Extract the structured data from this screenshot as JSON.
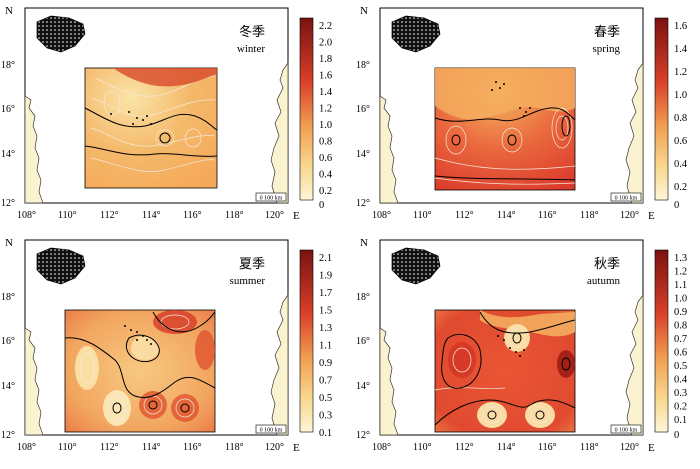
{
  "axis_labels": {
    "north": "N",
    "east": "E"
  },
  "panels": [
    {
      "season_cn": "冬季",
      "season_en": "winter",
      "scale_bar": "0 100 km",
      "colorbar": [
        "2.2",
        "2.0",
        "1.8",
        "1.6",
        "1.4",
        "1.2",
        "1.0",
        "0.8",
        "0.6",
        "0.4",
        "0.2",
        "0"
      ],
      "lat_ticks": [
        "18°",
        "16°",
        "14°",
        "12°"
      ],
      "lon_ticks": [
        "108°",
        "110°",
        "112°",
        "114°",
        "116°",
        "118°",
        "120°"
      ]
    },
    {
      "season_cn": "春季",
      "season_en": "spring",
      "scale_bar": "0 100 km",
      "colorbar": [
        "1.6",
        "1.4",
        "1.2",
        "1.0",
        "0.8",
        "0.6",
        "0.4",
        "0.2",
        "0"
      ],
      "lat_ticks": [
        "18°",
        "16°",
        "14°",
        "12°"
      ],
      "lon_ticks": [
        "108°",
        "110°",
        "112°",
        "114°",
        "116°",
        "118°",
        "120°"
      ]
    },
    {
      "season_cn": "夏季",
      "season_en": "summer",
      "scale_bar": "0 100 km",
      "colorbar": [
        "2.1",
        "1.9",
        "1.7",
        "1.5",
        "1.3",
        "1.1",
        "0.9",
        "0.7",
        "0.5",
        "0.3",
        "0.1"
      ],
      "lat_ticks": [
        "18°",
        "16°",
        "14°",
        "12°"
      ],
      "lon_ticks": [
        "108°",
        "110°",
        "112°",
        "114°",
        "116°",
        "118°",
        "120°"
      ]
    },
    {
      "season_cn": "秋季",
      "season_en": "autumn",
      "scale_bar": "0 100 km",
      "colorbar": [
        "1.3",
        "1.2",
        "1.1",
        "1.0",
        "0.9",
        "0.8",
        "0.7",
        "0.6",
        "0.5",
        "0.4",
        "0.3",
        "0.2",
        "0.1",
        "0"
      ],
      "lat_ticks": [
        "18°",
        "16°",
        "14°",
        "12°"
      ],
      "lon_ticks": [
        "108°",
        "110°",
        "112°",
        "114°",
        "116°",
        "118°",
        "120°"
      ]
    }
  ]
}
